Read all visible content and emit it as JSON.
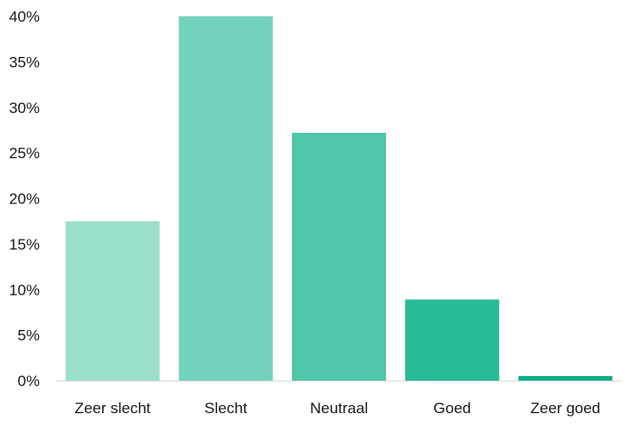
{
  "chart_data": {
    "type": "bar",
    "title": "",
    "xlabel": "",
    "ylabel": "",
    "categories": [
      "Zeer slecht",
      "Slecht",
      "Neutraal",
      "Goed",
      "Zeer goed"
    ],
    "values": [
      17.5,
      40.0,
      27.2,
      8.9,
      0.5
    ],
    "ylim": [
      0,
      40
    ],
    "yticks": [
      "0%",
      "5%",
      "10%",
      "15%",
      "20%",
      "25%",
      "30%",
      "35%",
      "40%"
    ],
    "grid": false,
    "legend": "none",
    "colors": [
      "#9bdfcd",
      "#74d3bd",
      "#4fc6aa",
      "#27bb97",
      "#0fae86"
    ],
    "axis_color": "#d9d9d9"
  }
}
